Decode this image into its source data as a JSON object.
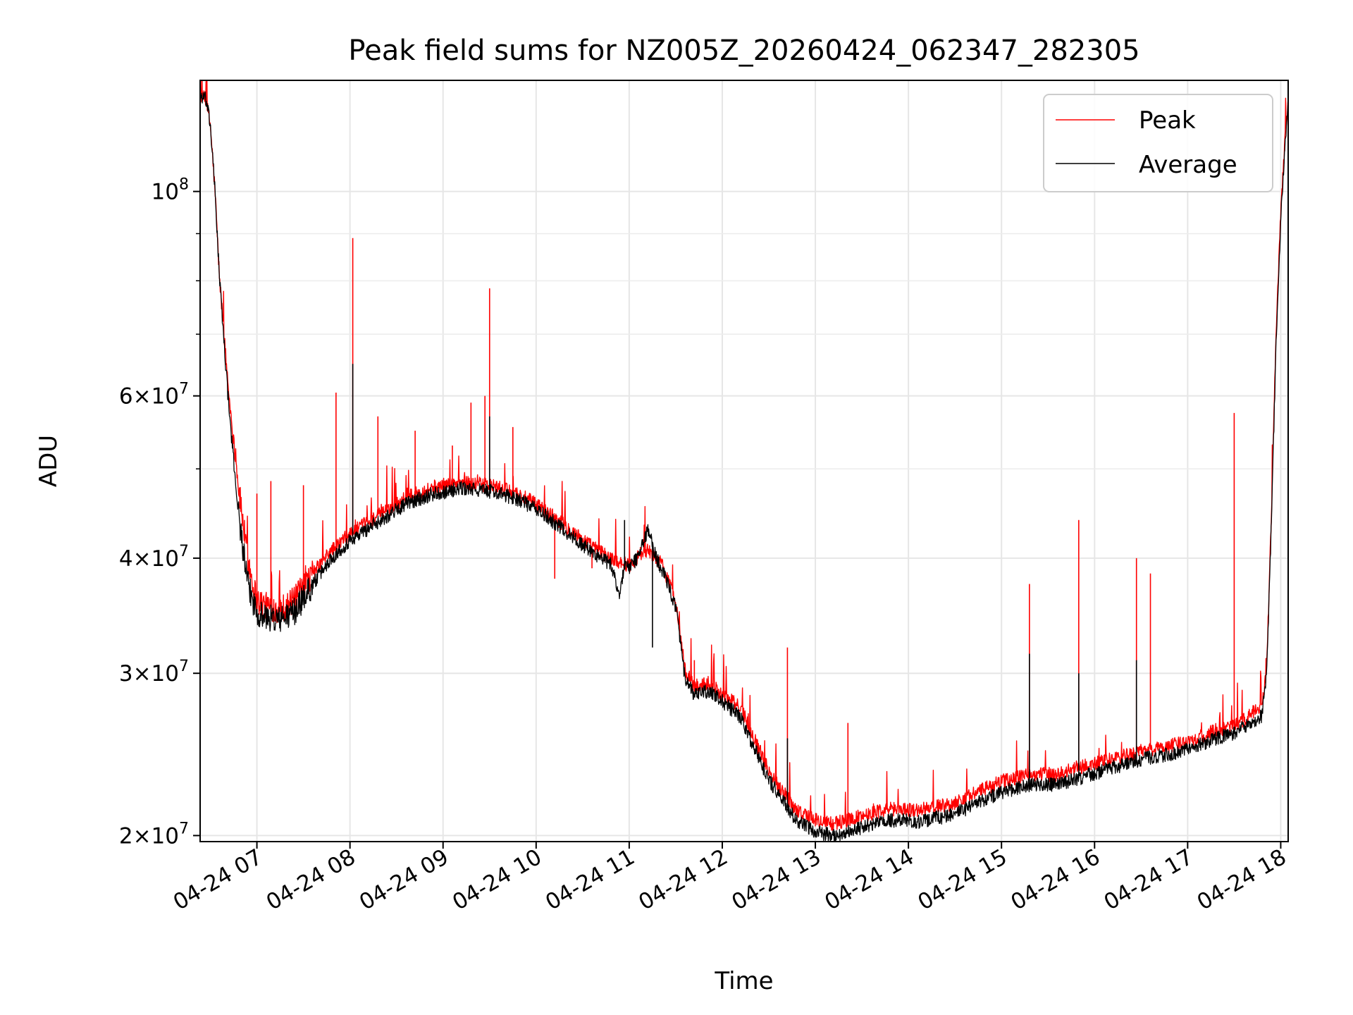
{
  "chart_data": {
    "type": "line",
    "title": "Peak field sums for NZ005Z_20260424_062347_282305",
    "xlabel": "Time",
    "ylabel": "ADU",
    "yscale": "log",
    "xlim": [
      6.39,
      18.08
    ],
    "ylim": [
      19700000,
      132000000
    ],
    "grid": true,
    "legend_position": "top-right",
    "x_ticks": [
      {
        "value": 7,
        "label": "04-24 07"
      },
      {
        "value": 8,
        "label": "04-24 08"
      },
      {
        "value": 9,
        "label": "04-24 09"
      },
      {
        "value": 10,
        "label": "04-24 10"
      },
      {
        "value": 11,
        "label": "04-24 11"
      },
      {
        "value": 12,
        "label": "04-24 12"
      },
      {
        "value": 13,
        "label": "04-24 13"
      },
      {
        "value": 14,
        "label": "04-24 14"
      },
      {
        "value": 15,
        "label": "04-24 15"
      },
      {
        "value": 16,
        "label": "04-24 16"
      },
      {
        "value": 17,
        "label": "04-24 17"
      },
      {
        "value": 18,
        "label": "04-24 18"
      }
    ],
    "y_ticks": [
      {
        "value": 20000000,
        "mantissa": "2",
        "exp": "7"
      },
      {
        "value": 30000000,
        "mantissa": "3",
        "exp": "7"
      },
      {
        "value": 40000000,
        "mantissa": "4",
        "exp": "7"
      },
      {
        "value": 60000000,
        "mantissa": "6",
        "exp": "7"
      },
      {
        "value": 100000000,
        "mantissa": "",
        "exp": "8"
      }
    ],
    "y_minor_ticks": [
      50000000,
      70000000,
      80000000,
      90000000
    ],
    "series": [
      {
        "name": "Peak",
        "color": "#ff0000",
        "x": [
          6.39,
          6.45,
          6.5,
          6.55,
          6.6,
          6.7,
          6.8,
          6.9,
          7.0,
          7.1,
          7.25,
          7.4,
          7.6,
          7.8,
          8.0,
          8.3,
          8.6,
          8.9,
          9.2,
          9.5,
          9.8,
          10.0,
          10.2,
          10.4,
          10.6,
          10.8,
          11.0,
          11.1,
          11.2,
          11.35,
          11.5,
          11.6,
          11.7,
          11.75,
          11.85,
          12.0,
          12.2,
          12.5,
          12.8,
          13.0,
          13.2,
          13.5,
          13.7,
          13.9,
          14.1,
          14.3,
          14.5,
          14.7,
          15.0,
          15.3,
          15.6,
          15.9,
          16.2,
          16.5,
          16.8,
          17.1,
          17.3,
          17.5,
          17.6,
          17.7,
          17.75,
          17.8,
          17.85,
          17.9,
          17.95,
          18.0,
          18.05,
          18.08
        ],
        "values": [
          127000000,
          126000000,
          118000000,
          100000000,
          80000000,
          60000000,
          48000000,
          40000000,
          36000000,
          35500000,
          35200000,
          36000000,
          38500000,
          40800000,
          42500000,
          44500000,
          46500000,
          47800000,
          48300000,
          48000000,
          47000000,
          45800000,
          44300000,
          42700000,
          41200000,
          40000000,
          39300000,
          40200000,
          40800000,
          39400000,
          36000000,
          30200000,
          29000000,
          29100000,
          29300000,
          28500000,
          27500000,
          23500000,
          21300000,
          20800000,
          20600000,
          21000000,
          21300000,
          21400000,
          21300000,
          21500000,
          21700000,
          22200000,
          22900000,
          23300000,
          23300000,
          23800000,
          24200000,
          24700000,
          25000000,
          25500000,
          26000000,
          26300000,
          26700000,
          27200000,
          27300000,
          27500000,
          30500000,
          45000000,
          70000000,
          95000000,
          115000000,
          125000000
        ],
        "spikes": [
          {
            "x": 7.0,
            "value": 47000000
          },
          {
            "x": 7.15,
            "value": 48500000
          },
          {
            "x": 7.5,
            "value": 48000000
          },
          {
            "x": 7.85,
            "value": 60500000
          },
          {
            "x": 8.03,
            "value": 89000000
          },
          {
            "x": 8.3,
            "value": 57000000
          },
          {
            "x": 8.7,
            "value": 55000000
          },
          {
            "x": 9.1,
            "value": 53000000
          },
          {
            "x": 9.3,
            "value": 59000000
          },
          {
            "x": 9.45,
            "value": 60000000
          },
          {
            "x": 9.5,
            "value": 78500000
          },
          {
            "x": 9.75,
            "value": 55500000
          },
          {
            "x": 10.0,
            "value": 45000000
          },
          {
            "x": 10.2,
            "value": 38000000
          },
          {
            "x": 10.6,
            "value": 39000000
          },
          {
            "x": 11.7,
            "value": 31000000
          },
          {
            "x": 12.7,
            "value": 32000000
          },
          {
            "x": 13.35,
            "value": 26500000
          },
          {
            "x": 15.3,
            "value": 37500000
          },
          {
            "x": 15.83,
            "value": 44000000
          },
          {
            "x": 16.45,
            "value": 40000000
          },
          {
            "x": 16.6,
            "value": 38500000
          },
          {
            "x": 17.5,
            "value": 57500000
          }
        ]
      },
      {
        "name": "Average",
        "color": "#000000",
        "x": [
          6.39,
          6.45,
          6.5,
          6.55,
          6.6,
          6.7,
          6.8,
          6.9,
          7.0,
          7.1,
          7.25,
          7.4,
          7.6,
          7.8,
          8.0,
          8.3,
          8.6,
          8.9,
          9.2,
          9.5,
          9.8,
          10.0,
          10.2,
          10.4,
          10.6,
          10.8,
          10.9,
          10.95,
          11.0,
          11.1,
          11.2,
          11.3,
          11.35,
          11.5,
          11.6,
          11.7,
          11.75,
          11.85,
          12.0,
          12.2,
          12.5,
          12.8,
          13.0,
          13.2,
          13.5,
          13.7,
          13.9,
          14.1,
          14.3,
          14.5,
          14.7,
          15.0,
          15.3,
          15.6,
          15.9,
          16.2,
          16.5,
          16.8,
          17.1,
          17.3,
          17.5,
          17.6,
          17.7,
          17.75,
          17.8,
          17.85,
          17.9,
          17.95,
          18.0,
          18.05,
          18.08
        ],
        "values": [
          127000000,
          126000000,
          118000000,
          100000000,
          80000000,
          58000000,
          45000000,
          37500000,
          35000000,
          34500000,
          34300000,
          35000000,
          37500000,
          40000000,
          41800000,
          43800000,
          45800000,
          47000000,
          47600000,
          47300000,
          46400000,
          45200000,
          43700000,
          42100000,
          40600000,
          39400000,
          36500000,
          39500000,
          39000000,
          40200000,
          43000000,
          39800000,
          39000000,
          35500000,
          29500000,
          28400000,
          28500000,
          28700000,
          28000000,
          26800000,
          23000000,
          20700000,
          20200000,
          20000000,
          20400000,
          20700000,
          20800000,
          20700000,
          20900000,
          21100000,
          21600000,
          22300000,
          22700000,
          22700000,
          23200000,
          23700000,
          24200000,
          24500000,
          25000000,
          25500000,
          25800000,
          26200000,
          26600000,
          26700000,
          27000000,
          30000000,
          44000000,
          68000000,
          93000000,
          113000000,
          125000000
        ],
        "spikes": [
          {
            "x": 8.03,
            "value": 65000000
          },
          {
            "x": 9.5,
            "value": 57000000
          },
          {
            "x": 10.95,
            "value": 44000000
          },
          {
            "x": 11.25,
            "value": 32000000
          },
          {
            "x": 12.7,
            "value": 25500000
          },
          {
            "x": 15.3,
            "value": 31500000
          },
          {
            "x": 15.83,
            "value": 30000000
          },
          {
            "x": 16.45,
            "value": 31000000
          }
        ]
      }
    ]
  }
}
